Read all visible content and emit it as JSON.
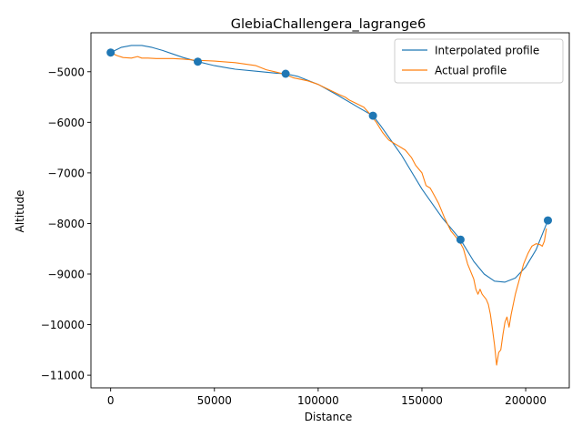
{
  "chart_data": {
    "type": "line",
    "title": "GlebiaChallengera_lagrange6",
    "xlabel": "Distance",
    "ylabel": "Altitude",
    "xlim": [
      -9500,
      221000
    ],
    "ylim": [
      -11250,
      -4230
    ],
    "xticks": [
      0,
      50000,
      100000,
      150000,
      200000
    ],
    "yticks": [
      -11000,
      -10000,
      -9000,
      -8000,
      -7000,
      -6000,
      -5000
    ],
    "legend_position": "top-right",
    "grid": false,
    "colors": {
      "interpolated": "#1f77b4",
      "actual": "#ff7f0e",
      "points": "#1f77b4"
    },
    "series": [
      {
        "name": "Interpolated profile",
        "style": "line",
        "x": [
          0,
          5000,
          10000,
          15000,
          20000,
          25000,
          30000,
          35000,
          42000,
          50000,
          60000,
          70000,
          80000,
          84300,
          90000,
          100000,
          110000,
          120000,
          126400,
          130000,
          140000,
          150000,
          160000,
          168600,
          175000,
          180000,
          185000,
          190000,
          195000,
          200000,
          205000,
          210700
        ],
        "y": [
          -4620,
          -4520,
          -4480,
          -4480,
          -4520,
          -4580,
          -4650,
          -4720,
          -4800,
          -4880,
          -4950,
          -4990,
          -5030,
          -5040,
          -5090,
          -5250,
          -5480,
          -5720,
          -5870,
          -6060,
          -6640,
          -7320,
          -7900,
          -8320,
          -8750,
          -9000,
          -9140,
          -9160,
          -9080,
          -8860,
          -8520,
          -7940
        ]
      },
      {
        "name": "Actual profile",
        "style": "line",
        "x": [
          0,
          3000,
          6000,
          10000,
          13000,
          15000,
          18000,
          22000,
          30000,
          35000,
          40000,
          50000,
          60000,
          70000,
          75000,
          80000,
          84000,
          88000,
          95000,
          100000,
          105000,
          110000,
          113000,
          115000,
          118000,
          122000,
          125000,
          128000,
          131000,
          134000,
          136000,
          138000,
          140000,
          142000,
          145000,
          147000,
          150000,
          152000,
          154000,
          156000,
          158000,
          161000,
          164000,
          166000,
          168000,
          170000,
          172000,
          175000,
          176000,
          177000,
          178000,
          179000,
          181000,
          182000,
          183000,
          184000,
          185000,
          186000,
          187000,
          188000,
          189000,
          190000,
          191000,
          192000,
          193000,
          195000,
          197000,
          199000,
          201000,
          203000,
          205000,
          207000,
          208000,
          209000,
          210000
        ],
        "y": [
          -4620,
          -4680,
          -4720,
          -4730,
          -4700,
          -4730,
          -4730,
          -4740,
          -4740,
          -4750,
          -4770,
          -4790,
          -4820,
          -4880,
          -4960,
          -5010,
          -5050,
          -5120,
          -5180,
          -5250,
          -5350,
          -5450,
          -5500,
          -5560,
          -5620,
          -5700,
          -5840,
          -6000,
          -6200,
          -6350,
          -6400,
          -6450,
          -6500,
          -6550,
          -6700,
          -6850,
          -7000,
          -7250,
          -7300,
          -7450,
          -7600,
          -7900,
          -8150,
          -8250,
          -8350,
          -8500,
          -8800,
          -9100,
          -9300,
          -9400,
          -9300,
          -9400,
          -9500,
          -9600,
          -9800,
          -10100,
          -10400,
          -10800,
          -10550,
          -10500,
          -10200,
          -9950,
          -9850,
          -10050,
          -9800,
          -9400,
          -9100,
          -8800,
          -8600,
          -8450,
          -8400,
          -8420,
          -8450,
          -8350,
          -8100
        ]
      },
      {
        "name": "",
        "style": "scatter",
        "x": [
          0,
          42000,
          84300,
          126400,
          168600,
          210700
        ],
        "y": [
          -4620,
          -4800,
          -5040,
          -5870,
          -8320,
          -7940
        ]
      }
    ]
  }
}
